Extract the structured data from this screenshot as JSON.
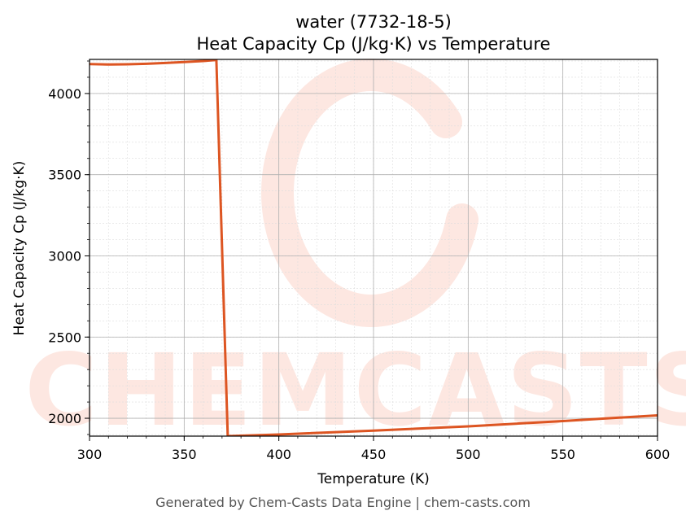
{
  "chart_data": {
    "type": "line",
    "title": "water (7732-18-5)",
    "subtitle": "Heat Capacity Cp (J/kg·K) vs Temperature",
    "xlabel": "Temperature (K)",
    "ylabel": "Heat Capacity Cp (J/kg·K)",
    "xlim": [
      300,
      600
    ],
    "ylim": [
      1890,
      4210
    ],
    "xticks": [
      "300",
      "350",
      "400",
      "450",
      "500",
      "550",
      "600"
    ],
    "yticks": [
      "2000",
      "2500",
      "3000",
      "3500",
      "4000"
    ],
    "grid": true,
    "line_color": "#dd5522",
    "series": [
      {
        "x": [
          300,
          310,
          320,
          330,
          340,
          350,
          360,
          367,
          373,
          400,
          450,
          500,
          550,
          600
        ],
        "values": [
          4181,
          4179,
          4180,
          4183,
          4188,
          4194,
          4200,
          4206,
          1890,
          1900,
          1924,
          1950,
          1983,
          2018
        ]
      }
    ]
  },
  "watermark": {
    "text": "CHEMCASTS",
    "color": "#fde3dc"
  },
  "footer": "Generated by Chem-Casts Data Engine | chem-casts.com"
}
